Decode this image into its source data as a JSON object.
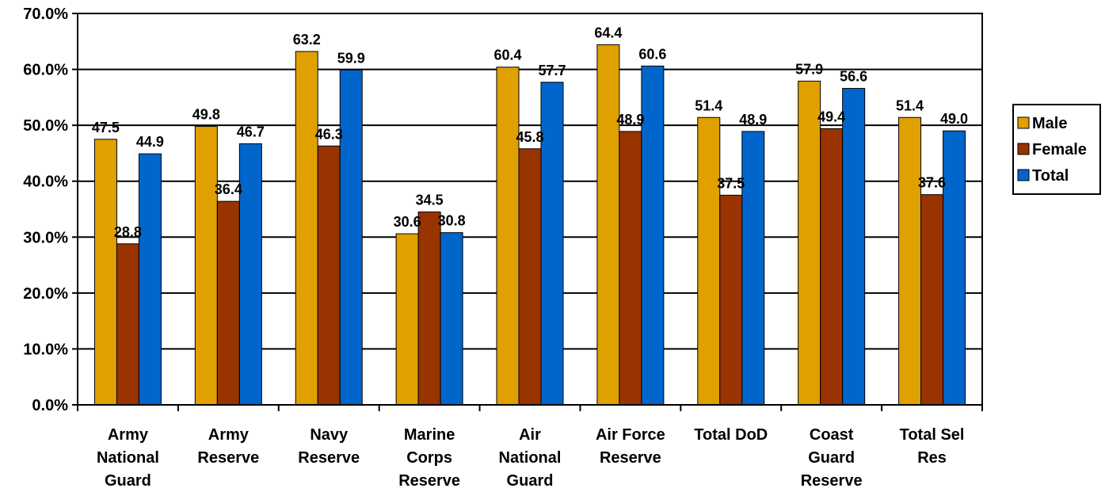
{
  "chart_data": {
    "type": "bar",
    "categories": [
      [
        "Army",
        "National",
        "Guard"
      ],
      [
        "Army",
        "Reserve"
      ],
      [
        "Navy",
        "Reserve"
      ],
      [
        "Marine",
        "Corps",
        "Reserve"
      ],
      [
        "Air",
        "National",
        "Guard"
      ],
      [
        "Air Force",
        "Reserve"
      ],
      [
        "Total DoD"
      ],
      [
        "Coast",
        "Guard",
        "Reserve"
      ],
      [
        "Total Sel",
        "Res"
      ]
    ],
    "series": [
      {
        "name": "Male",
        "color": "#E0A000",
        "values": [
          47.5,
          49.8,
          63.2,
          30.6,
          60.4,
          64.4,
          51.4,
          57.9,
          51.4
        ],
        "labels": [
          "47.5",
          "49.8",
          "63.2",
          "30.6",
          "60.4",
          "64.4",
          "51.4",
          "57.9",
          "51.4"
        ]
      },
      {
        "name": "Female",
        "color": "#993300",
        "values": [
          28.8,
          36.4,
          46.3,
          34.5,
          45.8,
          48.9,
          37.5,
          49.4,
          37.6
        ],
        "labels": [
          "28.8",
          "36.4",
          "46.3",
          "34.5",
          "45.8",
          "48.9",
          "37.5",
          "49.4",
          "37.6"
        ]
      },
      {
        "name": "Total",
        "color": "#0066CC",
        "values": [
          44.9,
          46.7,
          59.9,
          30.8,
          57.7,
          60.6,
          48.9,
          56.6,
          49.0
        ],
        "labels": [
          "44.9",
          "46.7",
          "59.9",
          "30.8",
          "57.7",
          "60.6",
          "48.9",
          "56.6",
          "49.0"
        ]
      }
    ],
    "y_ticks": [
      "0.0%",
      "10.0%",
      "20.0%",
      "30.0%",
      "40.0%",
      "50.0%",
      "60.0%",
      "70.0%"
    ],
    "ylim": [
      0,
      70
    ],
    "y_step": 10,
    "grid": true,
    "legend_position": "right"
  }
}
